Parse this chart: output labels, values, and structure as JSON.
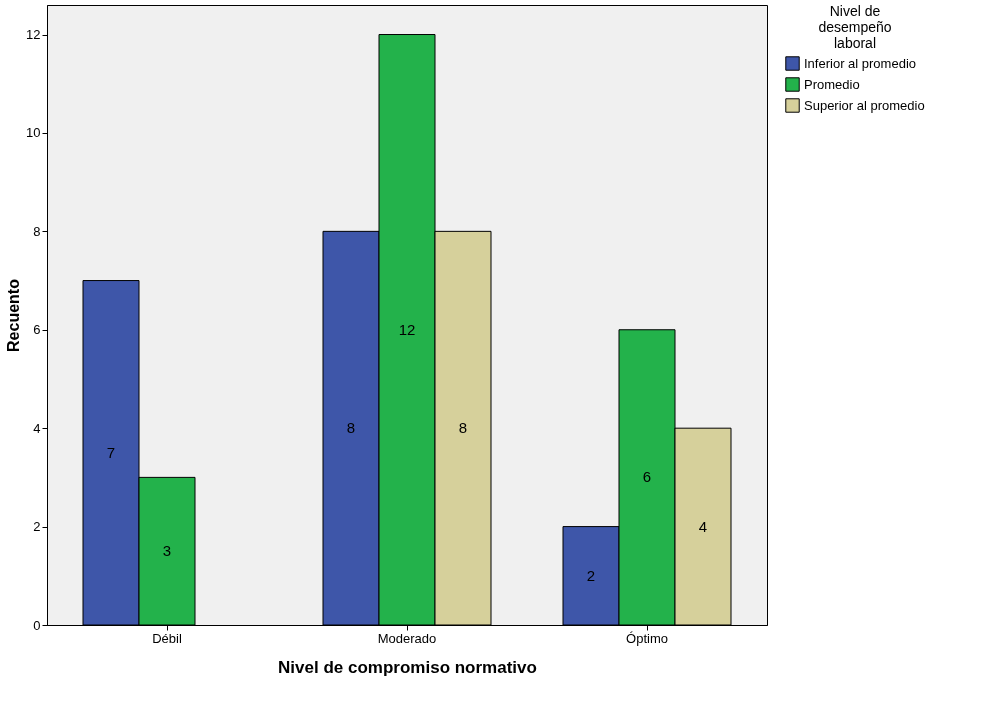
{
  "chart_data": {
    "type": "bar",
    "xlabel": "Nivel de compromiso normativo",
    "ylabel": "Recuento",
    "legend_title": "Nivel de desempeño laboral",
    "categories": [
      "Débil",
      "Moderado",
      "Óptimo"
    ],
    "series": [
      {
        "name": "Inferior al promedio",
        "color": "#3e56a9",
        "values": [
          7,
          8,
          2
        ]
      },
      {
        "name": "Promedio",
        "color": "#23b24b",
        "values": [
          3,
          12,
          6
        ]
      },
      {
        "name": "Superior al promedio",
        "color": "#d6d09b",
        "values": [
          null,
          8,
          4
        ]
      }
    ],
    "ylim": [
      0,
      12.6
    ],
    "yticks": [
      0,
      2,
      4,
      6,
      8,
      10,
      12
    ],
    "grid": false,
    "legend": "top right",
    "data_labels": true
  }
}
